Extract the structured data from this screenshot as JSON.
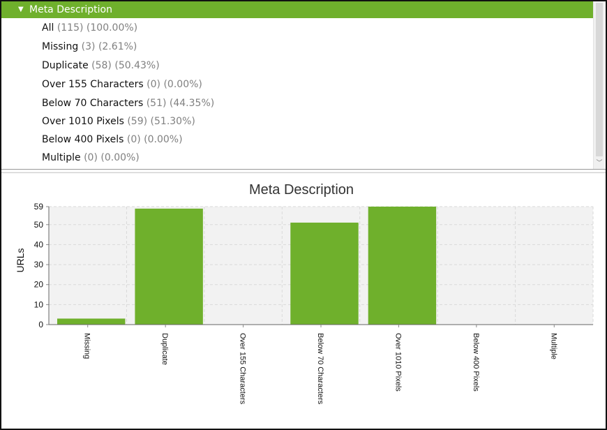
{
  "tree": {
    "header_label": "Meta Description",
    "items": [
      {
        "label": "All",
        "count": "(115)",
        "percent": "(100.00%)"
      },
      {
        "label": "Missing",
        "count": "(3)",
        "percent": "(2.61%)"
      },
      {
        "label": "Duplicate",
        "count": "(58)",
        "percent": "(50.43%)"
      },
      {
        "label": "Over 155 Characters",
        "count": "(0)",
        "percent": "(0.00%)"
      },
      {
        "label": "Below 70 Characters",
        "count": "(51)",
        "percent": "(44.35%)"
      },
      {
        "label": "Over 1010 Pixels",
        "count": "(59)",
        "percent": "(51.30%)"
      },
      {
        "label": "Below 400 Pixels",
        "count": "(0)",
        "percent": "(0.00%)"
      },
      {
        "label": "Multiple",
        "count": "(0)",
        "percent": "(0.00%)"
      }
    ]
  },
  "colors": {
    "accent": "#6fb02c",
    "bar": "#6fb02c",
    "plot_bg": "#f2f2f2",
    "grid": "#d9d9d9"
  },
  "icons": {
    "header_caret": "caret-down-icon",
    "scroll_down": "scroll-down-arrow-icon"
  },
  "chart_data": {
    "type": "bar",
    "title": "Meta Description",
    "xlabel": "",
    "ylabel": "URLs",
    "categories": [
      "Missing",
      "Duplicate",
      "Over 155 Characters",
      "Below 70 Characters",
      "Over 1010 Pixels",
      "Below 400 Pixels",
      "Multiple"
    ],
    "values": [
      3,
      58,
      0,
      51,
      59,
      0,
      0
    ],
    "ylim": [
      0,
      59
    ],
    "yticks": [
      0,
      10,
      20,
      30,
      40,
      50,
      59
    ],
    "grid": true
  }
}
